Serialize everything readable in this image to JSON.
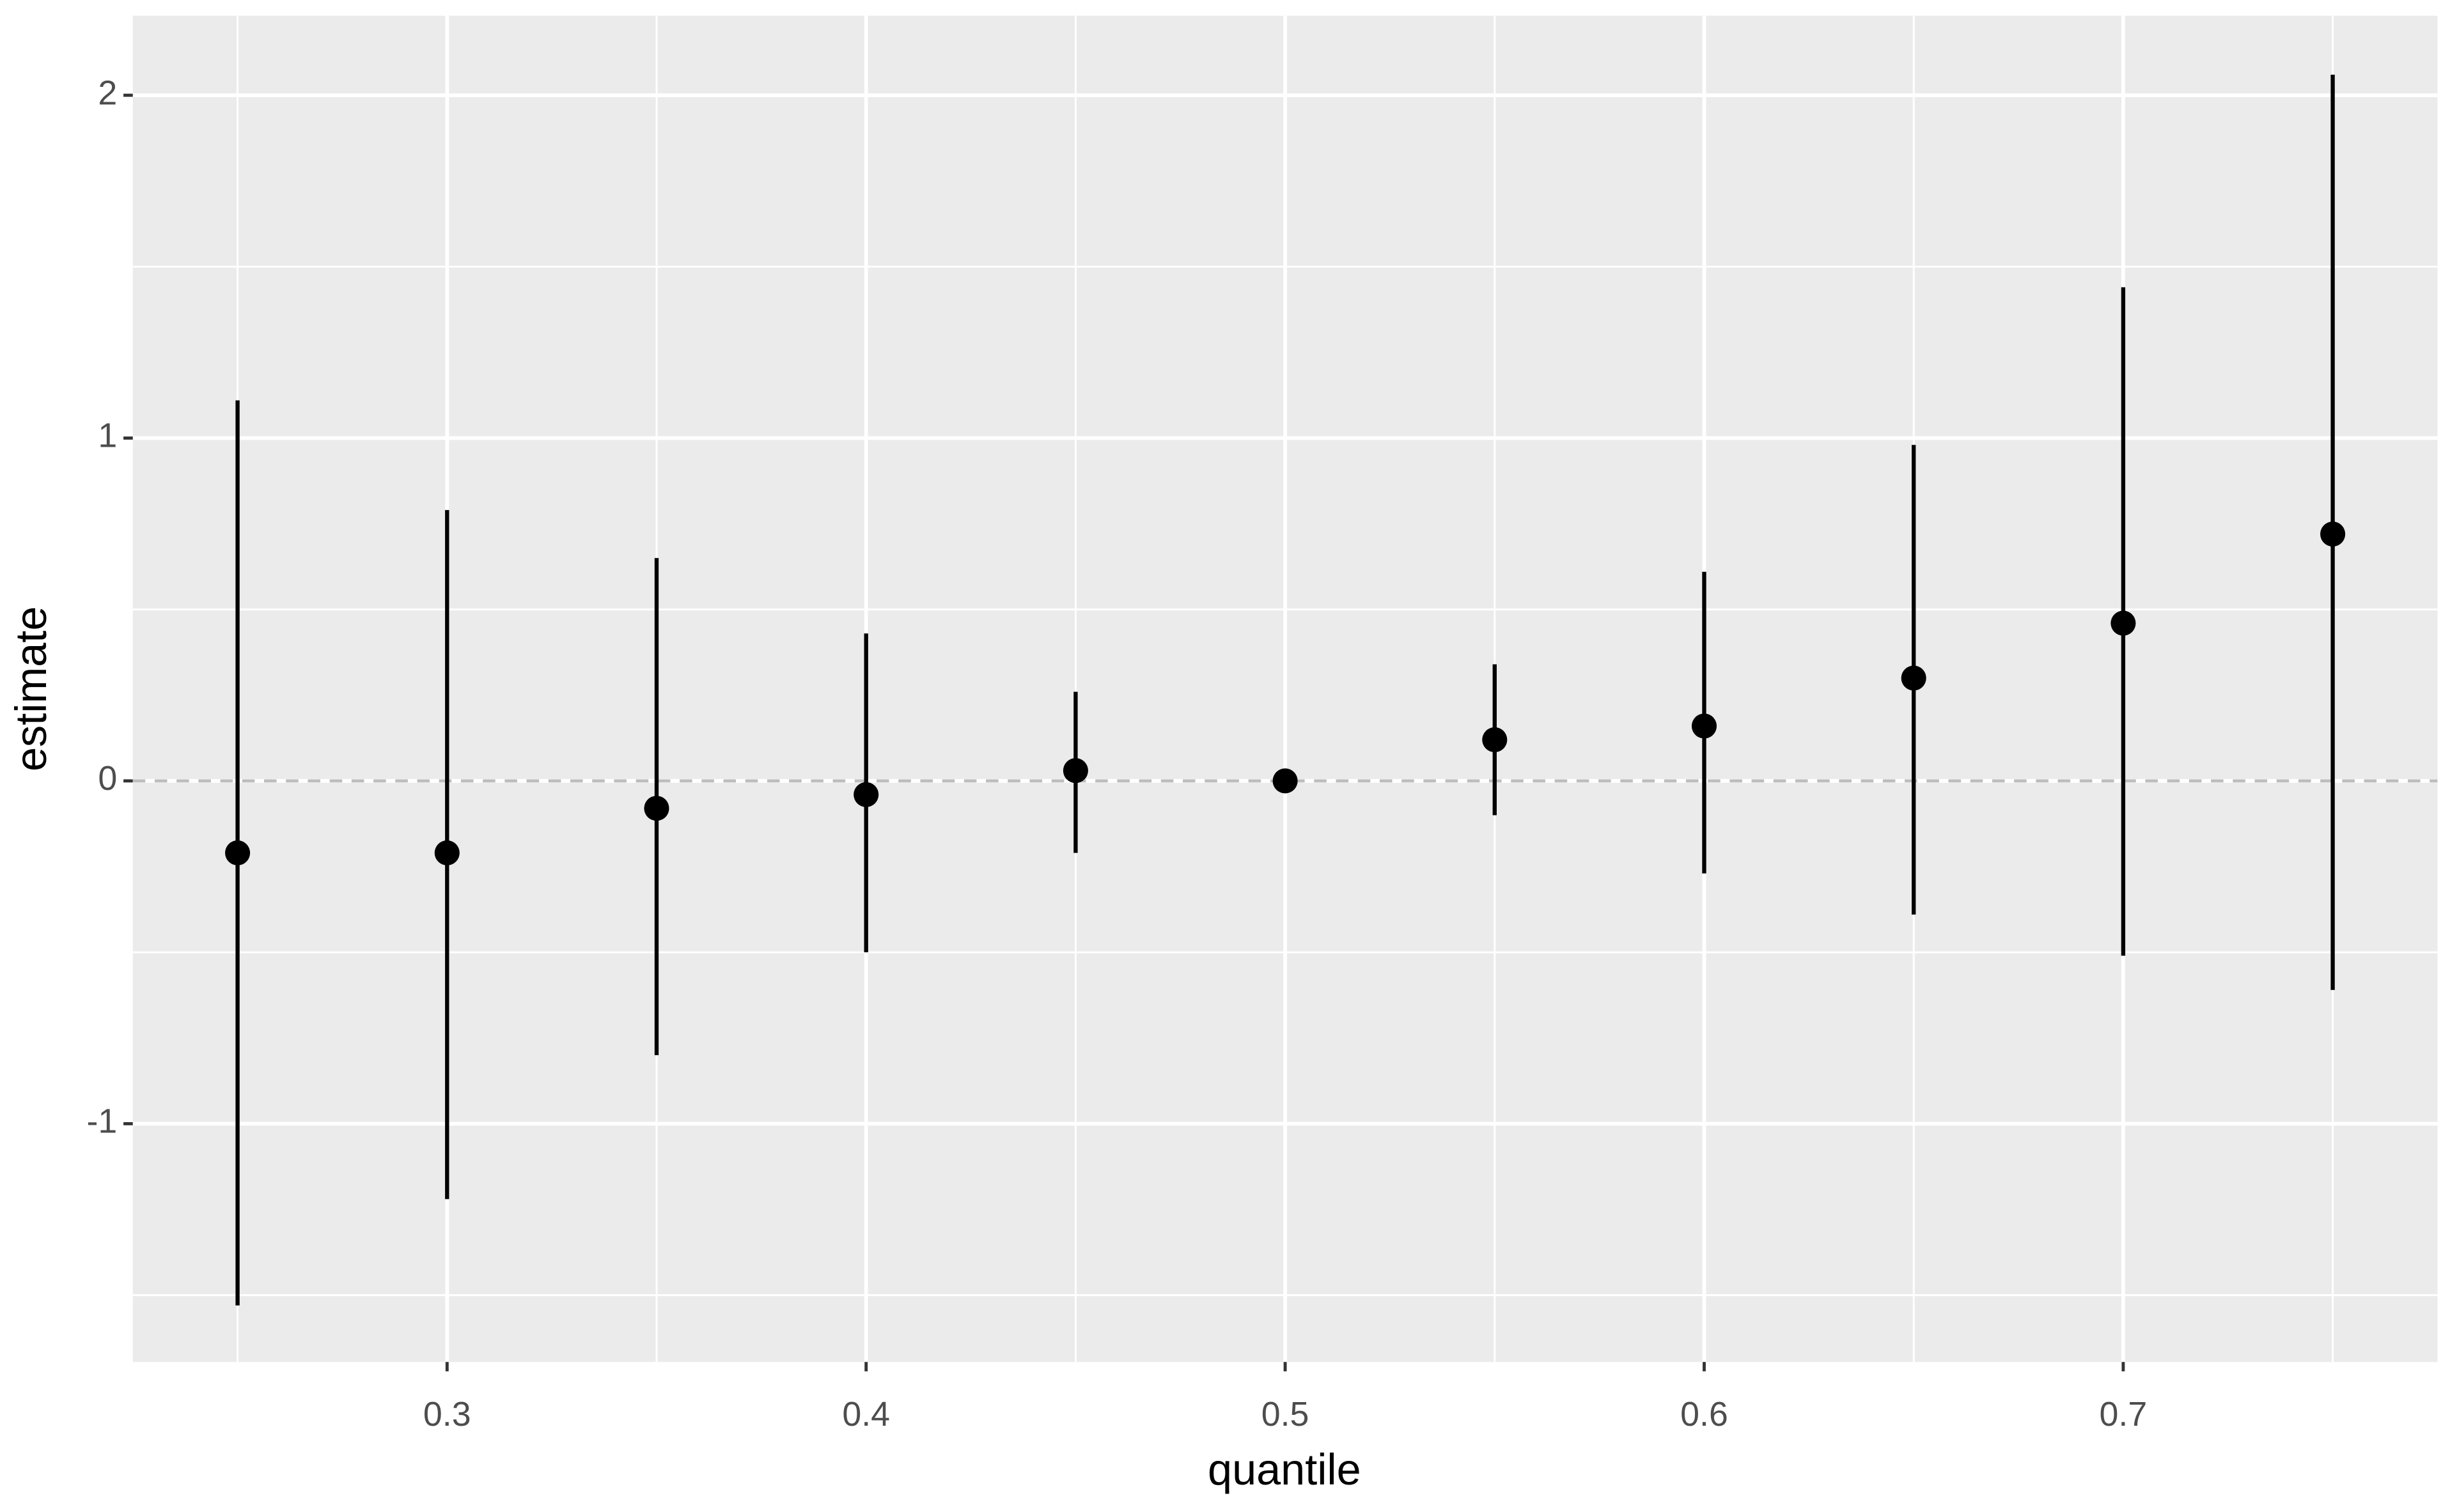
{
  "chart_data": {
    "type": "pointrange",
    "x_label": "quantile",
    "y_label": "estimate",
    "x": [
      0.25,
      0.3,
      0.35,
      0.4,
      0.45,
      0.5,
      0.55,
      0.6,
      0.65,
      0.7,
      0.75
    ],
    "values": [
      -0.21,
      -0.21,
      -0.08,
      -0.04,
      0.03,
      0,
      0.12,
      0.16,
      0.3,
      0.46,
      0.72
    ],
    "low": [
      -1.53,
      -1.22,
      -0.8,
      -0.5,
      -0.21,
      0,
      -0.1,
      -0.27,
      -0.39,
      -0.51,
      -0.61
    ],
    "high": [
      1.11,
      0.79,
      0.65,
      0.43,
      0.26,
      0,
      0.34,
      0.61,
      0.98,
      1.44,
      2.06
    ],
    "color": "#000000",
    "xlim": [
      0.225,
      0.775
    ],
    "xticks": [
      0.3,
      0.4,
      0.5,
      0.6,
      0.7
    ],
    "ylim": [
      -1.695,
      2.232
    ],
    "yticks": [
      -1,
      0,
      1,
      2
    ],
    "hline": 0,
    "grid": true,
    "minor_grid": true
  }
}
